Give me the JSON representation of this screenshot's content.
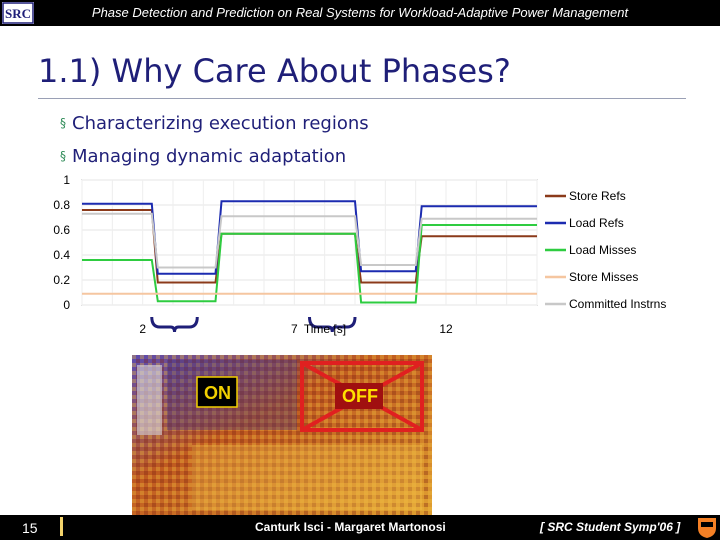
{
  "header": {
    "title": "Phase Detection and Prediction on Real Systems for Workload-Adaptive Power Management"
  },
  "slide": {
    "title": "1.1) Why Care About Phases?",
    "bullets": [
      "Characterizing execution regions",
      "Managing dynamic adaptation"
    ]
  },
  "chip": {
    "on_label": "ON",
    "off_label": "OFF"
  },
  "footer": {
    "slide_number": "15",
    "authors": "Canturk Isci - Margaret Martonosi",
    "venue": "[ SRC Student Symp'06 ]"
  },
  "icons": {
    "logo": "src-logo-icon",
    "shield": "princeton-shield-icon"
  },
  "colors": {
    "title": "#1f1f78",
    "store_refs": "#8b3a1a",
    "load_refs": "#1c2bb0",
    "load_misses": "#2ecc40",
    "store_misses": "#f5c6a0",
    "committed_instrns": "#c8c8c8"
  },
  "chart_data": {
    "type": "line",
    "title": "",
    "xlabel": "Time [s]",
    "ylabel": "",
    "xlim": [
      0,
      15
    ],
    "ylim": [
      0,
      1
    ],
    "x_ticks": [
      2,
      7,
      12
    ],
    "y_ticks": [
      0,
      0.2,
      0.4,
      0.6,
      0.8,
      1
    ],
    "y_tick_labels": [
      "0",
      "0.2",
      "0.4",
      "0.6",
      "0.8",
      "1"
    ],
    "legend_position": "right",
    "phase_brackets": [
      [
        2.3,
        3.8
      ],
      [
        7.5,
        9
      ]
    ],
    "grid": true,
    "series": [
      {
        "name": "Store Refs",
        "color": "#8b3a1a",
        "x": [
          0,
          2.3,
          2.5,
          4.4,
          4.6,
          9.0,
          9.2,
          11.0,
          11.2,
          15
        ],
        "y": [
          0.76,
          0.76,
          0.18,
          0.18,
          0.57,
          0.57,
          0.18,
          0.18,
          0.55,
          0.55
        ]
      },
      {
        "name": "Load Refs",
        "color": "#1c2bb0",
        "x": [
          0,
          2.3,
          2.5,
          4.4,
          4.6,
          9.0,
          9.2,
          11.0,
          11.2,
          15
        ],
        "y": [
          0.81,
          0.81,
          0.25,
          0.25,
          0.83,
          0.83,
          0.27,
          0.27,
          0.79,
          0.79
        ]
      },
      {
        "name": "Load Misses",
        "color": "#2ecc40",
        "x": [
          0,
          2.3,
          2.5,
          4.4,
          4.6,
          9.0,
          9.2,
          11.0,
          11.2,
          15
        ],
        "y": [
          0.36,
          0.36,
          0.03,
          0.03,
          0.57,
          0.57,
          0.02,
          0.02,
          0.64,
          0.64
        ]
      },
      {
        "name": "Store Misses",
        "color": "#f5c6a0",
        "x": [
          0,
          15
        ],
        "y": [
          0.09,
          0.09
        ]
      },
      {
        "name": "Committed Instrns",
        "color": "#c8c8c8",
        "x": [
          0,
          2.3,
          2.5,
          4.4,
          4.6,
          9.0,
          9.2,
          11.0,
          11.2,
          15
        ],
        "y": [
          0.73,
          0.73,
          0.3,
          0.3,
          0.71,
          0.71,
          0.32,
          0.32,
          0.69,
          0.69
        ]
      }
    ]
  }
}
